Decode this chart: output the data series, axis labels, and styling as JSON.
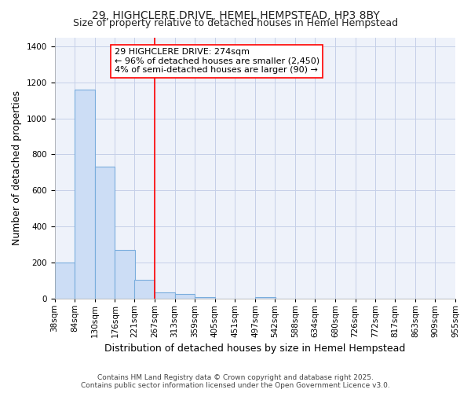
{
  "title1": "29, HIGHCLERE DRIVE, HEMEL HEMPSTEAD, HP3 8BY",
  "title2": "Size of property relative to detached houses in Hemel Hempstead",
  "xlabel": "Distribution of detached houses by size in Hemel Hempstead",
  "ylabel": "Number of detached properties",
  "bins": [
    "38sqm",
    "84sqm",
    "130sqm",
    "176sqm",
    "221sqm",
    "267sqm",
    "313sqm",
    "359sqm",
    "405sqm",
    "451sqm",
    "497sqm",
    "542sqm",
    "588sqm",
    "634sqm",
    "680sqm",
    "726sqm",
    "772sqm",
    "817sqm",
    "863sqm",
    "909sqm",
    "955sqm"
  ],
  "bin_edges": [
    38,
    84,
    130,
    176,
    221,
    267,
    313,
    359,
    405,
    451,
    497,
    542,
    588,
    634,
    680,
    726,
    772,
    817,
    863,
    909,
    955
  ],
  "counts": [
    200,
    1160,
    730,
    270,
    105,
    35,
    25,
    5,
    0,
    0,
    8,
    0,
    0,
    0,
    0,
    0,
    0,
    0,
    0,
    0
  ],
  "bar_color": "#ccddf5",
  "bar_edge_color": "#7aaddd",
  "red_line_x": 267,
  "annotation_text": "29 HIGHCLERE DRIVE: 274sqm\n← 96% of detached houses are smaller (2,450)\n4% of semi-detached houses are larger (90) →",
  "ylim": [
    0,
    1450
  ],
  "yticks": [
    0,
    200,
    400,
    600,
    800,
    1000,
    1200,
    1400
  ],
  "footer1": "Contains HM Land Registry data © Crown copyright and database right 2025.",
  "footer2": "Contains public sector information licensed under the Open Government Licence v3.0.",
  "bg_color": "#ffffff",
  "plot_bg_color": "#eef2fa",
  "grid_color": "#c5cfe8",
  "title1_fontsize": 10,
  "title2_fontsize": 9,
  "axis_label_fontsize": 9,
  "tick_fontsize": 7.5,
  "annotation_fontsize": 8,
  "footer_fontsize": 6.5
}
